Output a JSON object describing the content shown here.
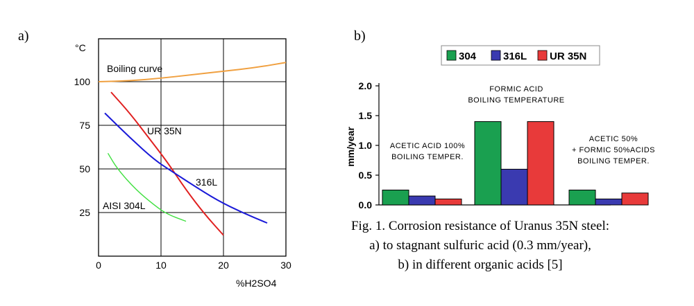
{
  "panel_a_label": "a)",
  "panel_b_label": "b)",
  "caption": {
    "line1": "Fig. 1. Corrosion resistance of  Uranus 35N steel:",
    "line2": "a) to stagnant  sulfuric acid (0.3 mm/year),",
    "line3": "b) in different organic acids [5]"
  },
  "colors": {
    "boiling": "#f0a040",
    "ur35n": "#e02020",
    "l316": "#1a1ad8",
    "aisi304l": "#40e040",
    "bar304": "#1aa050",
    "bar316l": "#3a3ab0",
    "barur35n": "#e83a3a"
  },
  "chart_data": [
    {
      "type": "line",
      "ylabel": "°C",
      "xlabel": "%H2SO4",
      "xlim": [
        0,
        30
      ],
      "ylim": [
        0,
        100
      ],
      "x_ticks": [
        "0",
        "10",
        "20",
        "30"
      ],
      "y_ticks": [
        "25",
        "50",
        "75",
        "100"
      ],
      "grid": true,
      "series": [
        {
          "name": "Boiling curve",
          "color_key": "boiling",
          "points": [
            [
              0,
              100
            ],
            [
              5,
              100.5
            ],
            [
              10,
              102
            ],
            [
              15,
              104
            ],
            [
              20,
              106
            ],
            [
              25,
              108
            ],
            [
              30,
              111
            ]
          ]
        },
        {
          "name": "UR 35N",
          "color_key": "ur35n",
          "points": [
            [
              2,
              94
            ],
            [
              5,
              82
            ],
            [
              8,
              68
            ],
            [
              11,
              54
            ],
            [
              14,
              38
            ],
            [
              17,
              24
            ],
            [
              20,
              12
            ]
          ]
        },
        {
          "name": "316L",
          "color_key": "l316",
          "points": [
            [
              1,
              82
            ],
            [
              5,
              68
            ],
            [
              9,
              55
            ],
            [
              12,
              48
            ],
            [
              15,
              41
            ],
            [
              19,
              32
            ],
            [
              23,
              25
            ],
            [
              27,
              19
            ]
          ]
        },
        {
          "name": "AISI 304L",
          "color_key": "aisi304l",
          "points": [
            [
              1.5,
              59
            ],
            [
              3,
              50
            ],
            [
              6,
              38
            ],
            [
              9,
              29
            ],
            [
              11,
              24
            ],
            [
              14,
              20
            ]
          ]
        }
      ]
    },
    {
      "type": "bar",
      "ylabel": "mm/year",
      "ylim": [
        0,
        2.0
      ],
      "y_ticks": [
        "0.0",
        "0.5",
        "1.0",
        "1.5",
        "2.0"
      ],
      "legend": [
        "304",
        "316L",
        "UR 35N"
      ],
      "legend_position": "top",
      "groups": [
        {
          "label_lines": [
            "ACETIC ACID 100%",
            "BOILING TEMPER."
          ],
          "values": [
            0.25,
            0.15,
            0.1
          ]
        },
        {
          "label_lines": [
            "FORMIC ACID",
            "BOILING TEMPERATURE"
          ],
          "values": [
            1.4,
            0.6,
            1.4
          ]
        },
        {
          "label_lines": [
            "ACETIC 50%",
            "+ FORMIC 50%ACIDS",
            "BOILING TEMPER."
          ],
          "values": [
            0.25,
            0.1,
            0.2
          ]
        }
      ]
    }
  ]
}
